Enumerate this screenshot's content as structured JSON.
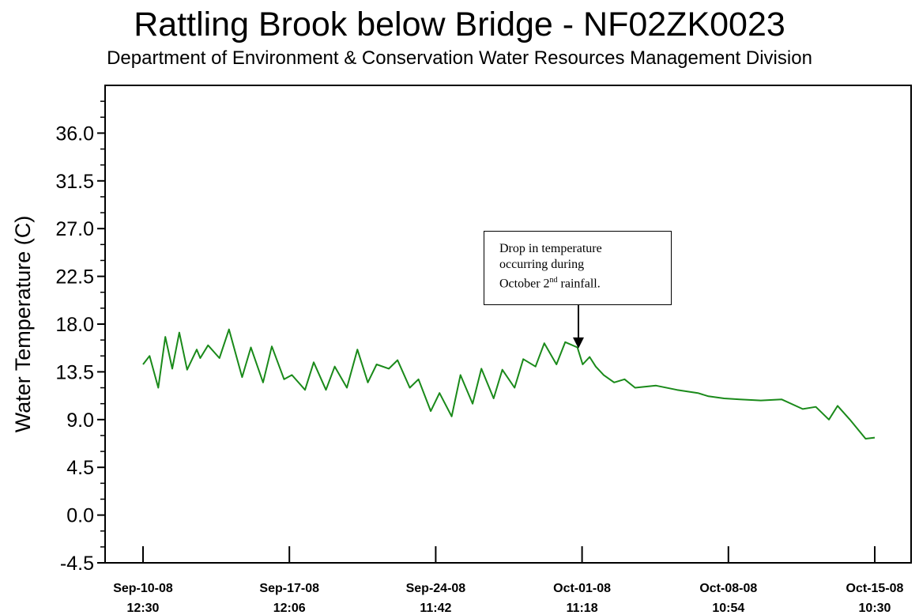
{
  "chart_data": {
    "type": "line",
    "title": "Rattling Brook below Bridge - NF02ZK0023",
    "subtitle": "Department of Environment & Conservation Water Resources Management Division",
    "ylabel": "Water Temperature (C)",
    "xlabel": "",
    "ylim": [
      -4.5,
      40.5
    ],
    "yticks": [
      "-4.5",
      "0.0",
      "4.5",
      "9.0",
      "13.5",
      "18.0",
      "22.5",
      "27.0",
      "31.5",
      "36.0"
    ],
    "xlim": [
      "2008-09-10 12:30",
      "2008-10-15 10:30"
    ],
    "xticks": [
      {
        "date": "Sep-10-08",
        "time": "12:30"
      },
      {
        "date": "Sep-17-08",
        "time": "12:06"
      },
      {
        "date": "Sep-24-08",
        "time": "11:42"
      },
      {
        "date": "Oct-01-08",
        "time": "11:18"
      },
      {
        "date": "Oct-08-08",
        "time": "10:54"
      },
      {
        "date": "Oct-15-08",
        "time": "10:30"
      }
    ],
    "grid": false,
    "line_color": "#1a8a1a",
    "series": [
      {
        "x": [
          "2008-09-10 12:30",
          "2008-09-10 20:00",
          "2008-09-11 06:00",
          "2008-09-11 14:00",
          "2008-09-11 22:00",
          "2008-09-12 06:00",
          "2008-09-12 15:00",
          "2008-09-13 02:00",
          "2008-09-13 06:00",
          "2008-09-13 15:00",
          "2008-09-14 04:00",
          "2008-09-14 15:00",
          "2008-09-15 06:00",
          "2008-09-15 16:00",
          "2008-09-16 06:00",
          "2008-09-16 16:00",
          "2008-09-17 06:00",
          "2008-09-17 15:00",
          "2008-09-18 06:00",
          "2008-09-18 16:00",
          "2008-09-19 06:00",
          "2008-09-19 16:00",
          "2008-09-20 06:00",
          "2008-09-20 18:00",
          "2008-09-21 06:00",
          "2008-09-21 16:00",
          "2008-09-22 06:00",
          "2008-09-22 16:00",
          "2008-09-23 06:00",
          "2008-09-23 16:00",
          "2008-09-24 06:00",
          "2008-09-24 16:00",
          "2008-09-25 06:00",
          "2008-09-25 16:00",
          "2008-09-26 06:00",
          "2008-09-26 16:00",
          "2008-09-27 06:00",
          "2008-09-27 16:00",
          "2008-09-28 06:00",
          "2008-09-28 16:00",
          "2008-09-29 06:00",
          "2008-09-29 16:00",
          "2008-09-30 06:00",
          "2008-09-30 16:00",
          "2008-10-01 06:00",
          "2008-10-01 12:00",
          "2008-10-01 20:00",
          "2008-10-02 03:00",
          "2008-10-02 12:00",
          "2008-10-03 00:00",
          "2008-10-03 12:00",
          "2008-10-04 00:00",
          "2008-10-05 00:00",
          "2008-10-06 00:00",
          "2008-10-07 00:00",
          "2008-10-07 12:00",
          "2008-10-08 06:00",
          "2008-10-09 00:00",
          "2008-10-10 00:00",
          "2008-10-11 00:00",
          "2008-10-12 00:00",
          "2008-10-12 15:00",
          "2008-10-13 06:00",
          "2008-10-13 16:00",
          "2008-10-14 06:00",
          "2008-10-15 00:00",
          "2008-10-15 10:30"
        ],
        "y": [
          14.2,
          15.0,
          12.0,
          16.8,
          13.8,
          17.2,
          13.7,
          15.6,
          14.8,
          16.0,
          14.8,
          17.5,
          13.0,
          15.8,
          12.5,
          15.9,
          12.8,
          13.2,
          11.8,
          14.4,
          11.8,
          14.0,
          12.0,
          15.6,
          12.5,
          14.2,
          13.8,
          14.6,
          12.0,
          12.8,
          9.8,
          11.5,
          9.3,
          13.2,
          10.5,
          13.8,
          11.0,
          13.7,
          12.0,
          14.7,
          14.0,
          16.2,
          14.2,
          16.3,
          15.8,
          14.2,
          14.9,
          14.0,
          13.2,
          12.5,
          12.8,
          12.0,
          12.2,
          11.8,
          11.5,
          11.2,
          11.0,
          10.9,
          10.8,
          10.9,
          10.0,
          10.2,
          9.0,
          10.3,
          9.0,
          7.2,
          7.3
        ]
      }
    ],
    "annotation": {
      "line1": "Drop in temperature",
      "line2": "occurring during",
      "line3_pre": "October 2",
      "line3_sup": "nd",
      "line3_post": " rainfall.",
      "target_y": 15.7
    }
  }
}
